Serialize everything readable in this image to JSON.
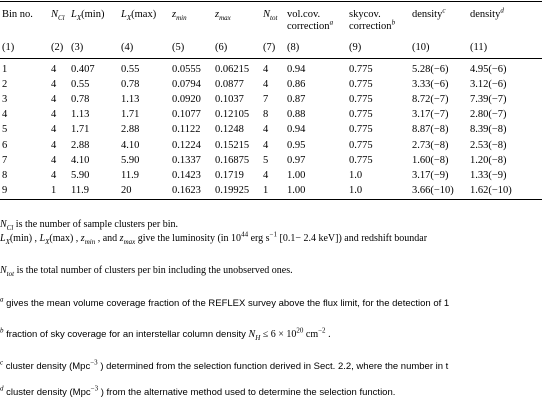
{
  "table": {
    "headers": [
      {
        "id": "bin",
        "line1": "Bin no.",
        "line2": ""
      },
      {
        "id": "ncl",
        "sym": "N",
        "sub": "Cl",
        "line2": ""
      },
      {
        "id": "lxmin",
        "sym": "L",
        "sub": "X",
        "suffix": "(min)",
        "line2": ""
      },
      {
        "id": "lxmax",
        "sym": "L",
        "sub": "X",
        "suffix": "(max)",
        "line2": ""
      },
      {
        "id": "zmin",
        "sym": "z",
        "sub": "min",
        "line2": ""
      },
      {
        "id": "zmax",
        "sym": "z",
        "sub": "max",
        "line2": ""
      },
      {
        "id": "ntot",
        "sym": "N",
        "sub": "tot",
        "line2": ""
      },
      {
        "id": "volcov",
        "line1": "vol.cov.",
        "line2": "correction",
        "sup": "a"
      },
      {
        "id": "skycov",
        "line1": "skycov.",
        "line2": "correction",
        "sup": "b"
      },
      {
        "id": "dens1",
        "line1": "density",
        "sup": "c",
        "line2": ""
      },
      {
        "id": "dens2",
        "line1": "density",
        "sup": "d",
        "line2": ""
      }
    ],
    "col_numbers": [
      "(1)",
      "(2)",
      "(3)",
      "(4)",
      "(5)",
      "(6)",
      "(7)",
      "(8)",
      "(9)",
      "(10)",
      "(11)"
    ],
    "rows": [
      [
        "1",
        "4",
        "0.407",
        "0.55",
        "0.0555",
        "0.06215",
        "4",
        "0.94",
        "0.775",
        "5.28(−6)",
        "4.95(−6)"
      ],
      [
        "2",
        "4",
        "0.55",
        "0.78",
        "0.0794",
        "0.0877",
        "4",
        "0.86",
        "0.775",
        "3.33(−6)",
        "3.12(−6)"
      ],
      [
        "3",
        "4",
        "0.78",
        "1.13",
        "0.0920",
        "0.1037",
        "7",
        "0.87",
        "0.775",
        "8.72(−7)",
        "7.39(−7)"
      ],
      [
        "4",
        "4",
        "1.13",
        "1.71",
        "0.1077",
        "0.12105",
        "8",
        "0.88",
        "0.775",
        "3.17(−7)",
        "2.80(−7)"
      ],
      [
        "5",
        "4",
        "1.71",
        "2.88",
        "0.1122",
        "0.1248",
        "4",
        "0.94",
        "0.775",
        "8.87(−8)",
        "8.39(−8)"
      ],
      [
        "6",
        "4",
        "2.88",
        "4.10",
        "0.1224",
        "0.15215",
        "4",
        "0.95",
        "0.775",
        "2.73(−8)",
        "2.53(−8)"
      ],
      [
        "7",
        "4",
        "4.10",
        "5.90",
        "0.1337",
        "0.16875",
        "5",
        "0.97",
        "0.775",
        "1.60(−8)",
        "1.20(−8)"
      ],
      [
        "8",
        "4",
        "5.90",
        "11.9",
        "0.1423",
        "0.1719",
        "4",
        "1.00",
        "1.0",
        "3.17(−9)",
        "1.33(−9)"
      ],
      [
        "9",
        "1",
        "11.9",
        "20",
        "0.1623",
        "0.19925",
        "1",
        "1.00",
        "1.0",
        "3.66(−10)",
        "1.62(−10)"
      ]
    ]
  },
  "notes": {
    "n1": {
      "sym": "N",
      "sub": "Cl",
      "text": " is the number of sample clusters per bin."
    },
    "n2": {
      "a": "L",
      "a_sub": "X",
      "a_tail": "(min) , ",
      "b": "L",
      "b_sub": "X",
      "b_tail": "(max) , ",
      "c": "z",
      "c_sub": "min",
      "c_tail": " , and ",
      "d": "z",
      "d_sub": "max",
      "d_tail": " give the luminosity (in 10",
      "exp": "44",
      "unit": " erg s",
      "unit_exp": "−1",
      "tail": " [0.1− 2.4 keV]) and redshift boundar"
    },
    "n3": {
      "sym": "N",
      "sub": "tot",
      "text": " is the total number of clusters per bin including the unobserved ones."
    },
    "n4": {
      "mark": "a",
      "text": " gives the mean volume coverage fraction of the REFLEX survey above the flux limit, for the detection of 1"
    },
    "n5": {
      "mark": "b",
      "text": " fraction of sky coverage for an interstellar column density ",
      "sym": "N",
      "sub": "H",
      "rel": " ≤ 6 × 10",
      "exp": "20",
      "unit": "  cm",
      "unit_exp": "−2",
      "end": " ."
    },
    "n6": {
      "mark": "c",
      "text": " cluster density (Mpc",
      "exp": "−3",
      "text2": " ) determined from the selection function derived in Sect. 2.2, where the number in t"
    },
    "n7": {
      "mark": "d",
      "text": " cluster density (Mpc",
      "exp": "−3",
      "text2": " ) from the alternative method used to determine the selection function."
    }
  }
}
